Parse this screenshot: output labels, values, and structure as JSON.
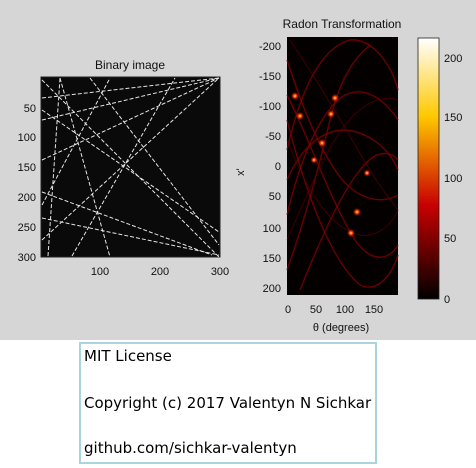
{
  "figure": {
    "left_panel": {
      "title": "Binary image",
      "y_ticks": [
        "50",
        "100",
        "150",
        "200",
        "250",
        "300"
      ],
      "x_ticks": [
        "100",
        "200",
        "300"
      ]
    },
    "right_panel": {
      "title": "Radon Transformation",
      "y_label": "x'",
      "x_label": "θ (degrees)",
      "y_ticks": [
        "-200",
        "-150",
        "-100",
        "-50",
        "0",
        "50",
        "100",
        "150",
        "200"
      ],
      "x_ticks": [
        "0",
        "50",
        "100",
        "150"
      ],
      "colorbar_ticks": [
        "200",
        "150",
        "100",
        "50",
        "0"
      ]
    }
  },
  "license": {
    "line1": "MIT License",
    "line2": "Copyright (c) 2017 Valentyn N Sichkar",
    "line3": "github.com/sichkar-valentyn"
  }
}
